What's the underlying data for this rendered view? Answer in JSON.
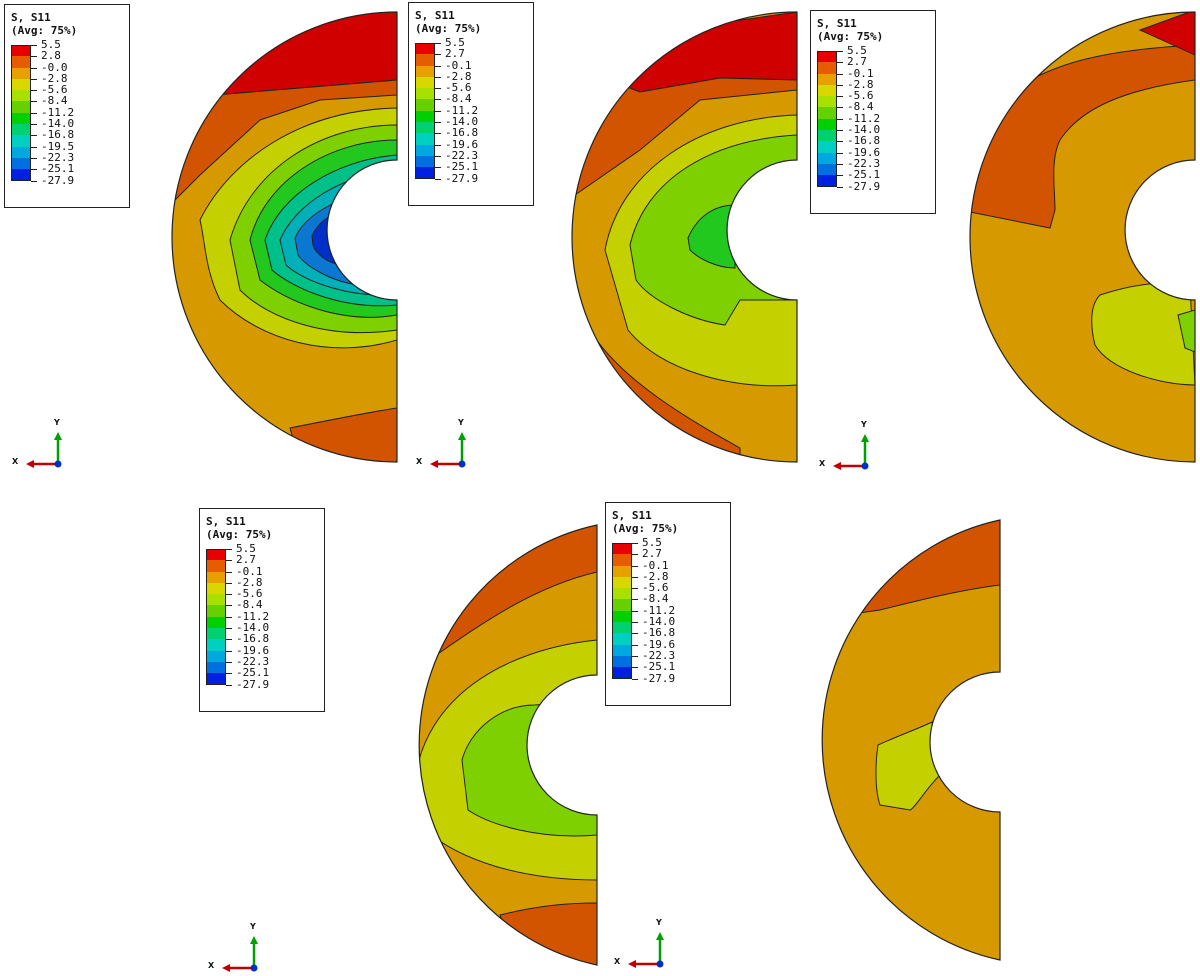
{
  "panels": [
    {
      "legend": {
        "title_line1": "S, S11",
        "title_line2": "(Avg: 75%)",
        "values": [
          "5.5",
          "2.8",
          "-0.0",
          "-2.8",
          "-5.6",
          "-8.4",
          "-11.2",
          "-14.0",
          "-16.8",
          "-19.5",
          "-22.3",
          "-25.1",
          "-27.9"
        ]
      },
      "axes": {
        "x": "X",
        "y": "Y"
      }
    },
    {
      "legend": {
        "title_line1": "S, S11",
        "title_line2": "(Avg: 75%)",
        "values": [
          "5.5",
          "2.7",
          "-0.1",
          "-2.8",
          "-5.6",
          "-8.4",
          "-11.2",
          "-14.0",
          "-16.8",
          "-19.6",
          "-22.3",
          "-25.1",
          "-27.9"
        ]
      },
      "axes": {
        "x": "X",
        "y": "Y"
      }
    },
    {
      "legend": {
        "title_line1": "S, S11",
        "title_line2": "(Avg: 75%)",
        "values": [
          "5.5",
          "2.7",
          "-0.1",
          "-2.8",
          "-5.6",
          "-8.4",
          "-11.2",
          "-14.0",
          "-16.8",
          "-19.6",
          "-22.3",
          "-25.1",
          "-27.9"
        ]
      },
      "axes": {
        "x": "X",
        "y": "Y"
      }
    },
    {
      "legend": {
        "title_line1": "S, S11",
        "title_line2": "(Avg: 75%)",
        "values": [
          "5.5",
          "2.7",
          "-0.1",
          "-2.8",
          "-5.6",
          "-8.4",
          "-11.2",
          "-14.0",
          "-16.8",
          "-19.6",
          "-22.3",
          "-25.1",
          "-27.9"
        ]
      },
      "axes": {
        "x": "X",
        "y": "Y"
      }
    },
    {
      "legend": {
        "title_line1": "S, S11",
        "title_line2": "(Avg: 75%)",
        "values": [
          "5.5",
          "2.7",
          "-0.1",
          "-2.8",
          "-5.6",
          "-8.4",
          "-11.2",
          "-14.0",
          "-16.8",
          "-19.6",
          "-22.3",
          "-25.1",
          "-27.9"
        ]
      },
      "axes": {
        "x": "X",
        "y": "Y"
      }
    }
  ],
  "colors": {
    "scale": [
      "#e60000",
      "#e65c00",
      "#e6a000",
      "#d8d800",
      "#a8e000",
      "#66d000",
      "#00d000",
      "#00d070",
      "#00d0c0",
      "#00a8e0",
      "#0070e0",
      "#0020e0"
    ],
    "contour_red": "#d00000",
    "contour_orange": "#d35400",
    "contour_amber": "#d69a00",
    "contour_yellow": "#c4d000",
    "contour_lime": "#7fd000",
    "contour_green": "#22c81e",
    "contour_teal": "#00c08a",
    "contour_cyan": "#00b0b8",
    "contour_blue": "#0a78d0",
    "contour_deep": "#0030c8",
    "axis_x": "#c00000",
    "axis_y": "#00a000",
    "axis_origin": "#0030c0"
  }
}
